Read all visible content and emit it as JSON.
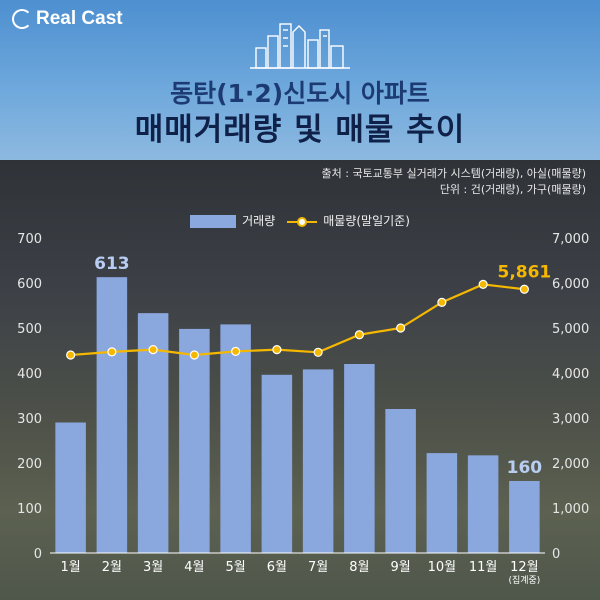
{
  "logo": {
    "text": "Real Cast"
  },
  "title": {
    "line1": "동탄(1·2)신도시 아파트",
    "line2": "매매거래량 및 매물 추이"
  },
  "source": {
    "line1": "출처 : 국토교통부 실거래가 시스템(거래량), 아실(매물량)",
    "line2": "단위 : 건(거래량), 가구(매물량)"
  },
  "colors": {
    "bar": "#8aa7de",
    "line": "#f5b800",
    "accent_label": "#f5b800",
    "bar_label": "#b9cdf2"
  },
  "chart_data": {
    "type": "bar+line",
    "categories": [
      "1월",
      "2월",
      "3월",
      "4월",
      "5월",
      "6월",
      "7월",
      "8월",
      "9월",
      "10월",
      "11월",
      "12월"
    ],
    "category_note": {
      "index": 11,
      "text": "(집계중)"
    },
    "series": [
      {
        "name": "거래량",
        "type": "bar",
        "axis": "left",
        "values": [
          290,
          613,
          533,
          498,
          508,
          396,
          408,
          420,
          320,
          222,
          217,
          160
        ]
      },
      {
        "name": "매물량(말일기준)",
        "type": "line",
        "axis": "right",
        "values": [
          4400,
          4470,
          4520,
          4400,
          4480,
          4520,
          4460,
          4850,
          5000,
          5570,
          5970,
          5861
        ]
      }
    ],
    "left_axis": {
      "min": 0,
      "max": 700,
      "ticks": [
        "0",
        "100",
        "200",
        "300",
        "400",
        "500",
        "600",
        "700"
      ]
    },
    "right_axis": {
      "min": 0,
      "max": 7000,
      "ticks": [
        "0",
        "1,000",
        "2,000",
        "3,000",
        "4,000",
        "5,000",
        "6,000",
        "7,000"
      ]
    },
    "annotations": [
      {
        "series": "거래량",
        "index": 1,
        "text": "613"
      },
      {
        "series": "거래량",
        "index": 11,
        "text": "160"
      },
      {
        "series": "매물량(말일기준)",
        "index": 11,
        "text": "5,861"
      }
    ],
    "legend": [
      "거래량",
      "매물량(말일기준)"
    ],
    "legend_position": "top-center"
  }
}
